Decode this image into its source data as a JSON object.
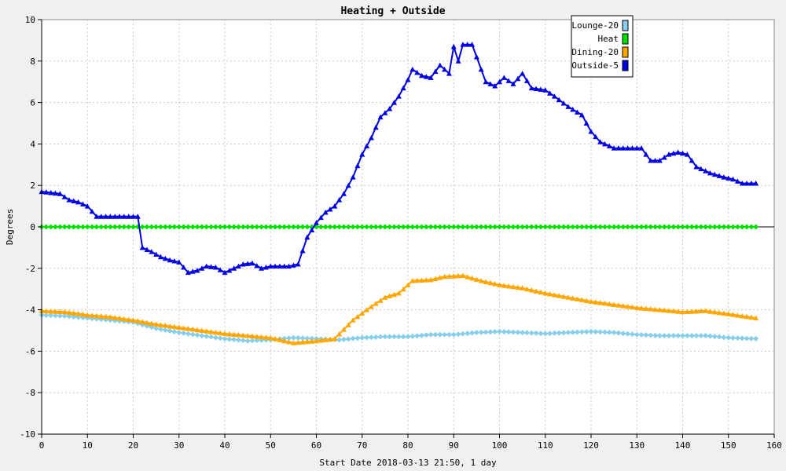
{
  "chart_data": {
    "type": "line",
    "title": "Heating + Outside",
    "xlabel": "Start Date 2018-03-13 21:50, 1 day",
    "ylabel": "Degrees",
    "xlim": [
      0,
      160
    ],
    "ylim": [
      -10,
      10
    ],
    "xticks": [
      0,
      10,
      20,
      30,
      40,
      50,
      60,
      70,
      80,
      90,
      100,
      110,
      120,
      130,
      140,
      150,
      160
    ],
    "yticks": [
      -10,
      -8,
      -6,
      -4,
      -2,
      0,
      2,
      4,
      6,
      8,
      10
    ],
    "grid": true,
    "legend_position": "top-right",
    "series": [
      {
        "name": "Lounge-20",
        "color": "#87ceeb",
        "marker": "diamond",
        "points": [
          [
            0,
            -4.25
          ],
          [
            5,
            -4.3
          ],
          [
            10,
            -4.4
          ],
          [
            15,
            -4.5
          ],
          [
            20,
            -4.6
          ],
          [
            25,
            -4.9
          ],
          [
            30,
            -5.1
          ],
          [
            35,
            -5.25
          ],
          [
            40,
            -5.4
          ],
          [
            45,
            -5.5
          ],
          [
            50,
            -5.45
          ],
          [
            55,
            -5.35
          ],
          [
            60,
            -5.4
          ],
          [
            65,
            -5.45
          ],
          [
            70,
            -5.35
          ],
          [
            75,
            -5.3
          ],
          [
            80,
            -5.3
          ],
          [
            85,
            -5.2
          ],
          [
            90,
            -5.2
          ],
          [
            95,
            -5.1
          ],
          [
            100,
            -5.05
          ],
          [
            105,
            -5.1
          ],
          [
            110,
            -5.15
          ],
          [
            115,
            -5.1
          ],
          [
            120,
            -5.05
          ],
          [
            125,
            -5.1
          ],
          [
            130,
            -5.2
          ],
          [
            135,
            -5.25
          ],
          [
            140,
            -5.25
          ],
          [
            145,
            -5.25
          ],
          [
            150,
            -5.35
          ],
          [
            156,
            -5.4
          ]
        ]
      },
      {
        "name": "Heat",
        "color": "#00e000",
        "marker": "diamond",
        "points": [
          [
            0,
            0
          ],
          [
            156,
            0
          ]
        ]
      },
      {
        "name": "Dining-20",
        "color": "#ffa500",
        "marker": "triangle",
        "points": [
          [
            0,
            -4.05
          ],
          [
            5,
            -4.1
          ],
          [
            10,
            -4.25
          ],
          [
            15,
            -4.35
          ],
          [
            20,
            -4.5
          ],
          [
            25,
            -4.7
          ],
          [
            30,
            -4.85
          ],
          [
            35,
            -5.0
          ],
          [
            40,
            -5.15
          ],
          [
            45,
            -5.25
          ],
          [
            50,
            -5.35
          ],
          [
            55,
            -5.6
          ],
          [
            60,
            -5.5
          ],
          [
            64,
            -5.4
          ],
          [
            68,
            -4.5
          ],
          [
            71,
            -4.0
          ],
          [
            75,
            -3.4
          ],
          [
            78,
            -3.2
          ],
          [
            81,
            -2.6
          ],
          [
            85,
            -2.55
          ],
          [
            88,
            -2.4
          ],
          [
            92,
            -2.35
          ],
          [
            96,
            -2.6
          ],
          [
            100,
            -2.8
          ],
          [
            105,
            -2.95
          ],
          [
            110,
            -3.2
          ],
          [
            115,
            -3.4
          ],
          [
            120,
            -3.6
          ],
          [
            125,
            -3.75
          ],
          [
            130,
            -3.9
          ],
          [
            135,
            -4.0
          ],
          [
            140,
            -4.1
          ],
          [
            145,
            -4.05
          ],
          [
            150,
            -4.2
          ],
          [
            156,
            -4.4
          ]
        ]
      },
      {
        "name": "Outside-5",
        "color": "#0000e0",
        "marker": "triangle",
        "points": [
          [
            0,
            1.7
          ],
          [
            2,
            1.65
          ],
          [
            4,
            1.6
          ],
          [
            6,
            1.3
          ],
          [
            8,
            1.2
          ],
          [
            10,
            1.0
          ],
          [
            12,
            0.5
          ],
          [
            15,
            0.5
          ],
          [
            18,
            0.5
          ],
          [
            21,
            0.5
          ],
          [
            22,
            -1.0
          ],
          [
            24,
            -1.2
          ],
          [
            26,
            -1.45
          ],
          [
            28,
            -1.6
          ],
          [
            30,
            -1.7
          ],
          [
            32,
            -2.2
          ],
          [
            34,
            -2.1
          ],
          [
            36,
            -1.9
          ],
          [
            38,
            -1.95
          ],
          [
            40,
            -2.2
          ],
          [
            42,
            -2.0
          ],
          [
            44,
            -1.8
          ],
          [
            46,
            -1.75
          ],
          [
            48,
            -2.0
          ],
          [
            50,
            -1.9
          ],
          [
            52,
            -1.9
          ],
          [
            54,
            -1.9
          ],
          [
            56,
            -1.8
          ],
          [
            58,
            -0.5
          ],
          [
            60,
            0.2
          ],
          [
            62,
            0.7
          ],
          [
            64,
            1.0
          ],
          [
            66,
            1.6
          ],
          [
            68,
            2.4
          ],
          [
            70,
            3.5
          ],
          [
            72,
            4.3
          ],
          [
            74,
            5.3
          ],
          [
            76,
            5.7
          ],
          [
            78,
            6.3
          ],
          [
            80,
            7.1
          ],
          [
            81,
            7.6
          ],
          [
            83,
            7.3
          ],
          [
            85,
            7.2
          ],
          [
            87,
            7.8
          ],
          [
            89,
            7.4
          ],
          [
            90,
            8.7
          ],
          [
            91,
            8.0
          ],
          [
            92,
            8.8
          ],
          [
            94,
            8.8
          ],
          [
            96,
            7.6
          ],
          [
            97,
            7.0
          ],
          [
            99,
            6.8
          ],
          [
            101,
            7.2
          ],
          [
            103,
            6.9
          ],
          [
            105,
            7.4
          ],
          [
            107,
            6.7
          ],
          [
            110,
            6.6
          ],
          [
            112,
            6.3
          ],
          [
            115,
            5.8
          ],
          [
            118,
            5.4
          ],
          [
            120,
            4.6
          ],
          [
            122,
            4.1
          ],
          [
            125,
            3.8
          ],
          [
            128,
            3.8
          ],
          [
            131,
            3.8
          ],
          [
            133,
            3.2
          ],
          [
            135,
            3.2
          ],
          [
            137,
            3.5
          ],
          [
            139,
            3.6
          ],
          [
            141,
            3.5
          ],
          [
            143,
            2.9
          ],
          [
            146,
            2.6
          ],
          [
            149,
            2.4
          ],
          [
            151,
            2.3
          ],
          [
            153,
            2.1
          ],
          [
            156,
            2.1
          ]
        ]
      }
    ]
  }
}
